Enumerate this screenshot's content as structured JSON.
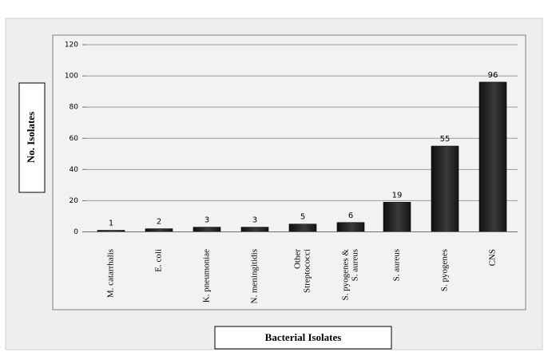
{
  "chart_data": {
    "type": "bar",
    "title": "",
    "xlabel": "Bacterial Isolates",
    "ylabel": "No. Isolates",
    "ylim": [
      0,
      120
    ],
    "yticks": [
      0,
      20,
      40,
      60,
      80,
      100,
      120
    ],
    "grid": true,
    "legend": "none",
    "categories": [
      "M. catarrhalis",
      "E. coli",
      "K. pneumoniae",
      "N. meningitidis",
      "Other Streptococci",
      "S. pyogenes & S. aureus",
      "S. aureus",
      "S. pyogenes",
      "CNS"
    ],
    "category_lines": [
      [
        "M. catarrhalis"
      ],
      [
        "E. coli"
      ],
      [
        "K. pneumoniae"
      ],
      [
        "N. meningitidis"
      ],
      [
        "Other",
        "Streptococci"
      ],
      [
        "S. pyogenes &",
        "S. aureus"
      ],
      [
        "S. aureus"
      ],
      [
        "S. pyogenes"
      ],
      [
        "CNS"
      ]
    ],
    "values": [
      1,
      2,
      3,
      3,
      5,
      6,
      19,
      55,
      96
    ],
    "colors": {
      "outer_background": "#efefef",
      "bar": "#1c1c1c",
      "bar_highlight": "#454545",
      "grid": "#9a9a9a",
      "text": "#000000"
    }
  }
}
